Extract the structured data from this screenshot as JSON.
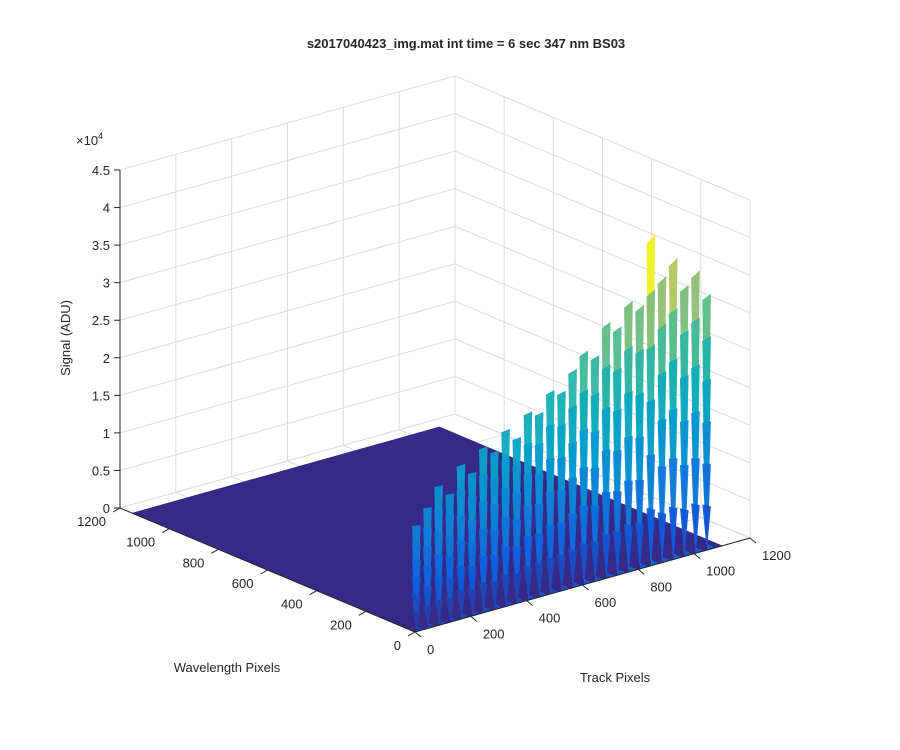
{
  "chart_data": {
    "type": "surface",
    "title": "s2017040423_img.mat int time = 6 sec  347 nm BS03",
    "xlabel": "Track Pixels",
    "ylabel": "Wavelength Pixels",
    "zlabel": "Signal (ADU)",
    "z_exponent_label": "×10",
    "z_exponent_power": "4",
    "xlim": [
      0,
      1200
    ],
    "ylim": [
      0,
      1200
    ],
    "zlim": [
      0,
      45000
    ],
    "x_ticks": [
      "0",
      "200",
      "400",
      "600",
      "800",
      "1000",
      "1200"
    ],
    "y_ticks": [
      "0",
      "200",
      "400",
      "600",
      "800",
      "1000",
      "1200"
    ],
    "z_ticks": [
      "0",
      "0.5",
      "1",
      "1.5",
      "2",
      "2.5",
      "3",
      "3.5",
      "4",
      "4.5"
    ],
    "grid": true,
    "colormap": "parula",
    "floor_color": "#352a87",
    "signal_extent": {
      "x": [
        0,
        1100
      ],
      "y": [
        0,
        35
      ]
    },
    "peaks": [
      {
        "x": 20,
        "z": 14000
      },
      {
        "x": 60,
        "z": 16000
      },
      {
        "x": 100,
        "z": 18500
      },
      {
        "x": 140,
        "z": 17000
      },
      {
        "x": 180,
        "z": 20500
      },
      {
        "x": 220,
        "z": 19000
      },
      {
        "x": 260,
        "z": 22000
      },
      {
        "x": 300,
        "z": 21000
      },
      {
        "x": 340,
        "z": 23500
      },
      {
        "x": 380,
        "z": 22000
      },
      {
        "x": 420,
        "z": 25000
      },
      {
        "x": 460,
        "z": 24500
      },
      {
        "x": 500,
        "z": 27000
      },
      {
        "x": 540,
        "z": 26500
      },
      {
        "x": 580,
        "z": 29000
      },
      {
        "x": 620,
        "z": 31000
      },
      {
        "x": 660,
        "z": 30000
      },
      {
        "x": 700,
        "z": 34000
      },
      {
        "x": 740,
        "z": 33000
      },
      {
        "x": 780,
        "z": 36000
      },
      {
        "x": 820,
        "z": 35000
      },
      {
        "x": 860,
        "z": 44000
      },
      {
        "x": 900,
        "z": 38000
      },
      {
        "x": 940,
        "z": 40000
      },
      {
        "x": 980,
        "z": 36000
      },
      {
        "x": 1020,
        "z": 37500
      },
      {
        "x": 1060,
        "z": 34000
      }
    ]
  }
}
